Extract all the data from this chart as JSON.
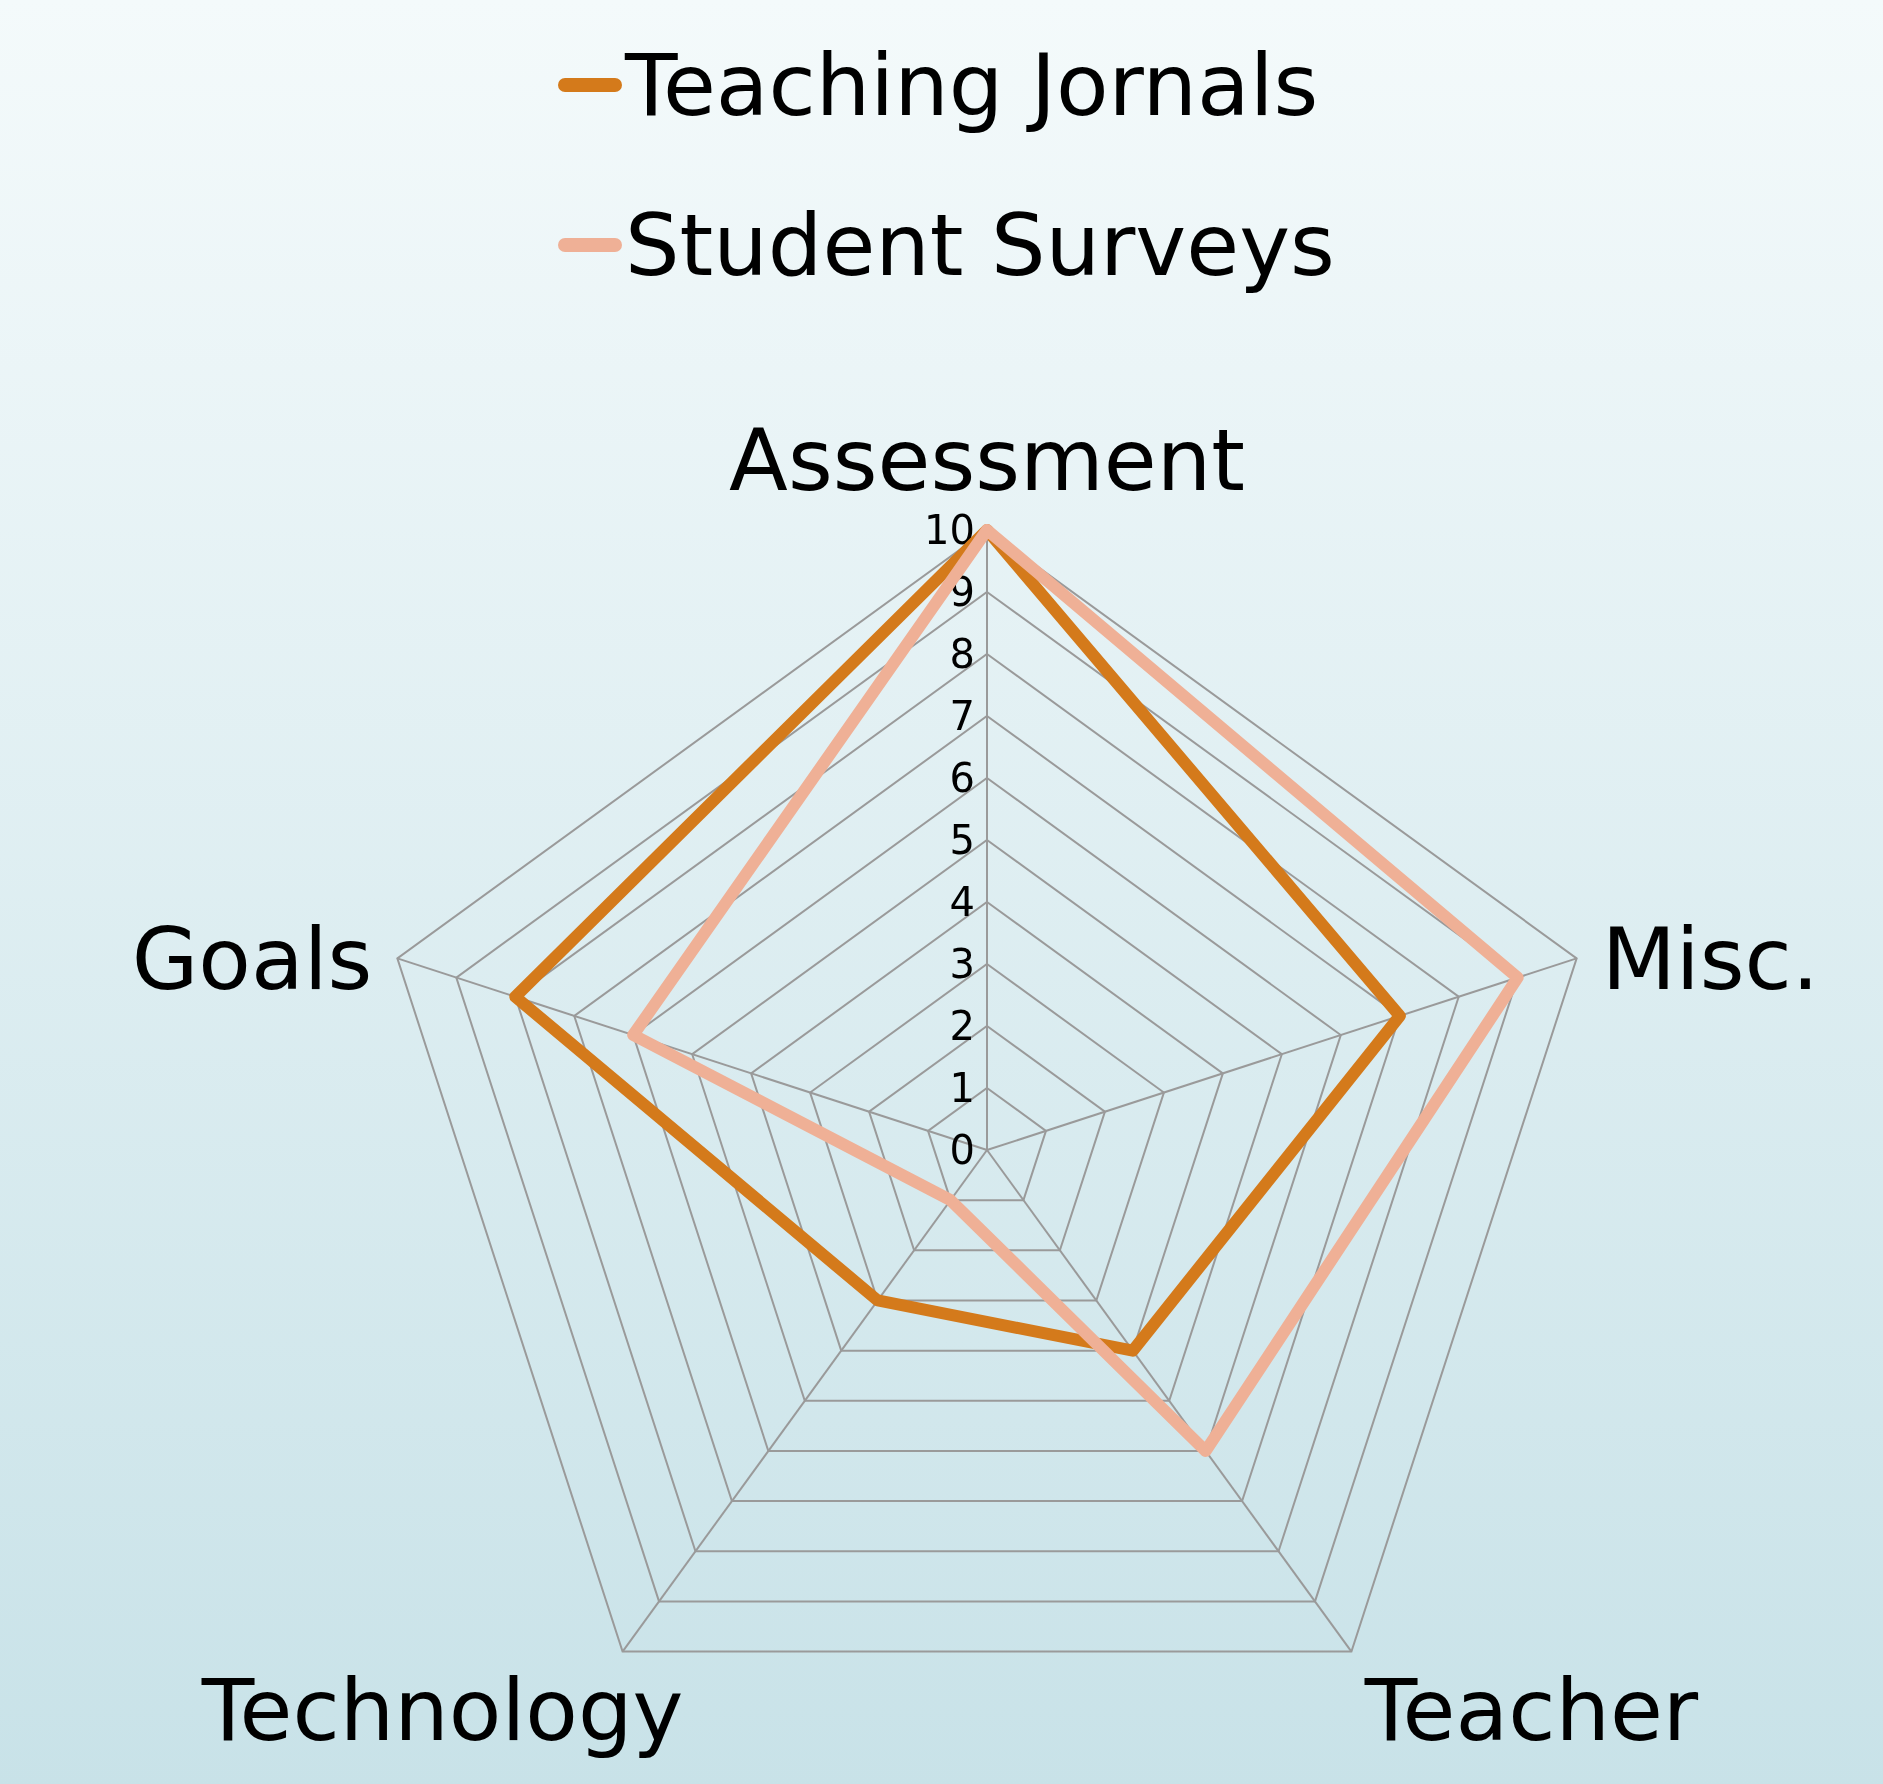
{
  "chart_data": {
    "type": "radar",
    "categories": [
      "Assessment",
      "Misc.",
      "Teacher",
      "Technology",
      "Goals"
    ],
    "series": [
      {
        "name": "Teaching Jornals",
        "color": "#d47a1b",
        "values": [
          10,
          7,
          4,
          3,
          8
        ]
      },
      {
        "name": "Student Surveys",
        "color": "#efb096",
        "values": [
          10,
          9,
          6,
          1,
          6
        ]
      }
    ],
    "ylim": [
      0,
      10
    ],
    "yticks": [
      0,
      1,
      2,
      3,
      4,
      5,
      6,
      7,
      8,
      9,
      10
    ],
    "grid": true,
    "legend": "top"
  }
}
